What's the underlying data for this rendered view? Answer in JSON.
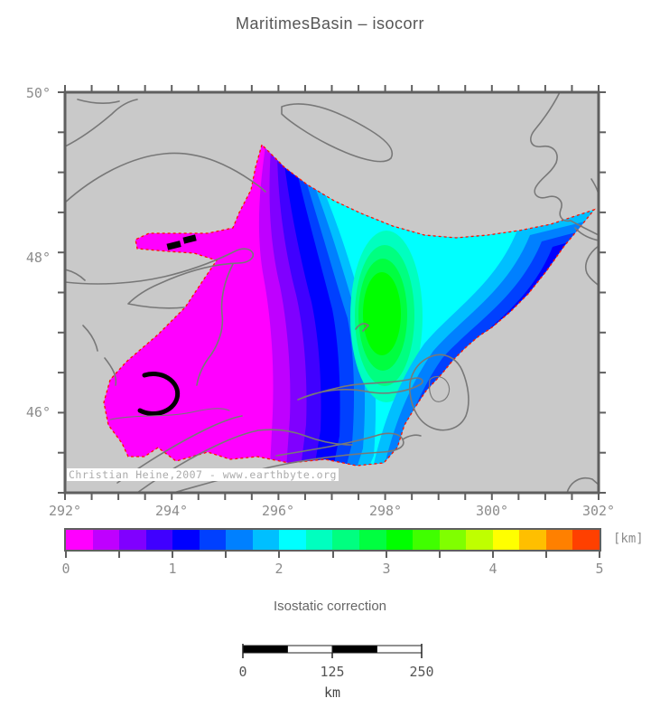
{
  "figure": {
    "title": "MaritimesBasin – isocorr"
  },
  "map": {
    "lon_tick_labels": [
      "292°",
      "294°",
      "296°",
      "298°",
      "300°",
      "302°"
    ],
    "lat_tick_labels": [
      "50°",
      "48°",
      "46°"
    ],
    "copyright": "Christian Heine,2007 - www.earthbyte.org",
    "land_color": "#c9c9c9",
    "coast_color": "#787878",
    "frame_color": "#5f5f5f",
    "data_boundary_color": "#ff1400",
    "highlight_contour_color": "#000000"
  },
  "colorbar": {
    "caption": "Isostatic correction",
    "unit": "[km]",
    "min": 0,
    "max": 5,
    "tick_labels": [
      "0",
      "1",
      "2",
      "3",
      "4",
      "5"
    ],
    "segments": [
      "#ff00ff",
      "#bf00ff",
      "#8000ff",
      "#4000ff",
      "#0000ff",
      "#0040ff",
      "#0080ff",
      "#00bfff",
      "#00ffff",
      "#00ffbf",
      "#00ff80",
      "#00ff40",
      "#00ff00",
      "#40ff00",
      "#80ff00",
      "#bfff00",
      "#ffff00",
      "#ffbf00",
      "#ff8000",
      "#ff4000"
    ]
  },
  "scalebar": {
    "tick_labels": [
      "0",
      "125",
      "250"
    ],
    "unit": "km",
    "length_km": 250
  }
}
